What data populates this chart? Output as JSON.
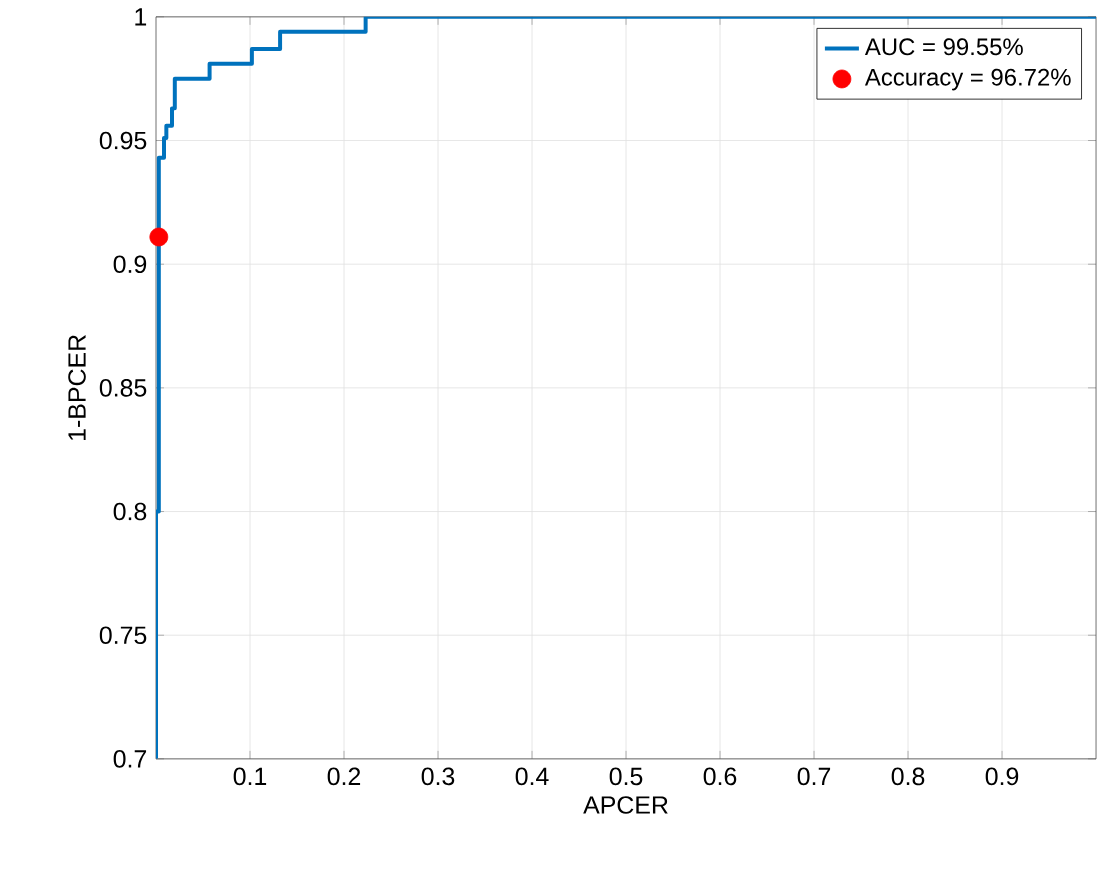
{
  "chart_data": {
    "type": "line",
    "xlabel": "APCER",
    "ylabel": "1-BPCER",
    "xlim": [
      0,
      1
    ],
    "ylim": [
      0.7,
      1
    ],
    "xticks": [
      0.1,
      0.2,
      0.3,
      0.4,
      0.5,
      0.6,
      0.7,
      0.8,
      0.9
    ],
    "yticks": [
      0.7,
      0.75,
      0.8,
      0.85,
      0.9,
      0.95,
      1
    ],
    "grid": true,
    "legend": "top right",
    "series": [
      {
        "name": "AUC = 99.55%",
        "color": "#0072bd",
        "marker": "none",
        "line_style": "solid",
        "x": [
          0,
          0,
          0.003,
          0.003,
          0.0085,
          0.0085,
          0.011,
          0.011,
          0.017,
          0.017,
          0.02,
          0.02,
          0.057,
          0.057,
          0.102,
          0.102,
          0.132,
          0.132,
          0.223,
          0.223,
          1
        ],
        "values": [
          0.7,
          0.8,
          0.8,
          0.943,
          0.943,
          0.951,
          0.951,
          0.956,
          0.956,
          0.963,
          0.963,
          0.975,
          0.975,
          0.981,
          0.981,
          0.987,
          0.987,
          0.994,
          0.994,
          1,
          1
        ]
      },
      {
        "name": "Accuracy = 96.72%",
        "type": "scatter",
        "color": "#ff0000",
        "marker": "circle",
        "x": [
          0.003
        ],
        "values": [
          0.911
        ]
      }
    ]
  }
}
